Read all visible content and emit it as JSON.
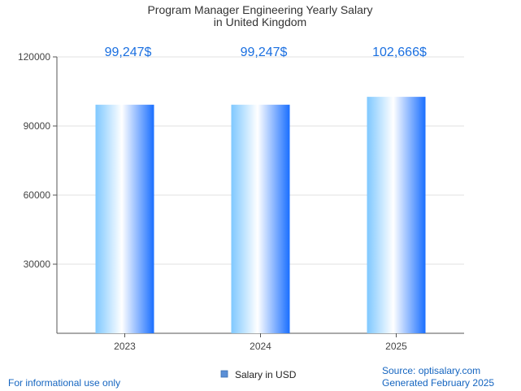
{
  "chart_data": {
    "type": "bar",
    "title_lines": [
      "Program Manager Engineering Yearly Salary",
      "in United Kingdom"
    ],
    "categories": [
      "2023",
      "2024",
      "2025"
    ],
    "values": [
      99247,
      99247,
      102666
    ],
    "value_labels": [
      "99,247$",
      "99,247$",
      "102,666$"
    ],
    "y_ticks": [
      30000,
      60000,
      90000,
      120000
    ],
    "y_tick_labels": [
      "30000",
      "60000",
      "90000",
      "120000"
    ],
    "ylim": [
      0,
      120000
    ],
    "grid": true,
    "legend": {
      "label": "Salary in USD",
      "placement": "bottom-center"
    },
    "series_name": "Salary in USD"
  },
  "footer": {
    "left": "For informational use only",
    "source": "Source: optisalary.com",
    "generated": "Generated February 2025"
  },
  "colors": {
    "bar_edge": "#1a6fff",
    "bar_mid": "#ffffff",
    "bar_light": "#7fc8ff",
    "value_text": "#1a6fe0",
    "footer_text": "#1565c0",
    "grid": "#e0e0e0",
    "axis": "#555555",
    "legend_swatch": "#5b8fd6"
  }
}
